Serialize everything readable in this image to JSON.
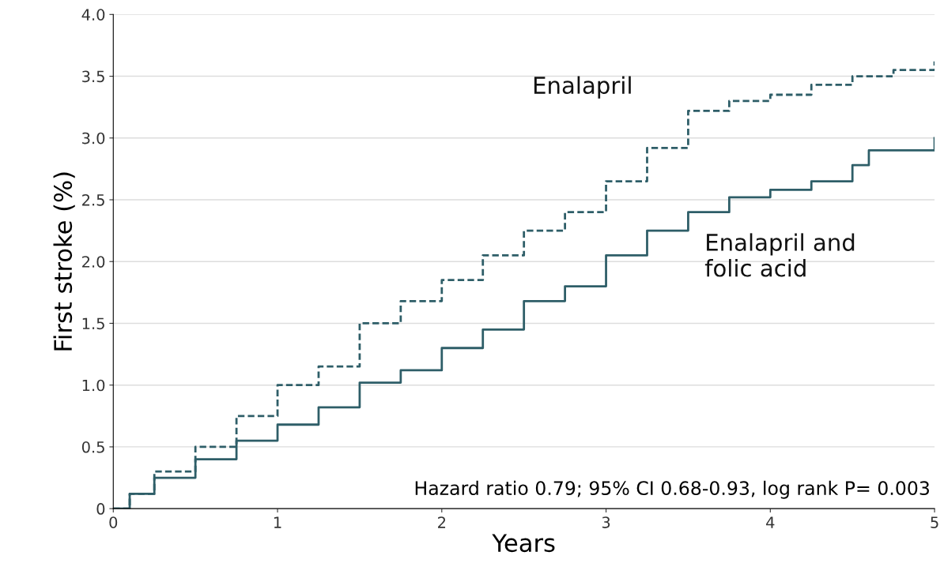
{
  "chart_data": {
    "type": "step",
    "xlabel": "Years",
    "ylabel": "First stroke (%)",
    "xlim": [
      0,
      5
    ],
    "ylim": [
      0,
      4.0
    ],
    "xticks": [
      0,
      1,
      2,
      3,
      4,
      5
    ],
    "yticks": [
      {
        "value": 0,
        "label": "0"
      },
      {
        "value": 0.5,
        "label": "0.5"
      },
      {
        "value": 1.0,
        "label": "1.0"
      },
      {
        "value": 1.5,
        "label": "1.5"
      },
      {
        "value": 2.0,
        "label": "2.0"
      },
      {
        "value": 2.5,
        "label": "2.5"
      },
      {
        "value": 3.0,
        "label": "3.0"
      },
      {
        "value": 3.5,
        "label": "3.5"
      },
      {
        "value": 4.0,
        "label": "4.0"
      }
    ],
    "grid": "y",
    "legend": false,
    "series": [
      {
        "name": "Enalapril",
        "color": "#2e5e68",
        "line_style": "dashed",
        "x": [
          0,
          0.1,
          0.25,
          0.5,
          0.75,
          1.0,
          1.25,
          1.5,
          1.75,
          2.0,
          2.25,
          2.5,
          2.75,
          3.0,
          3.25,
          3.5,
          3.75,
          4.0,
          4.25,
          4.5,
          4.75,
          5.0,
          5.0
        ],
        "values": [
          0,
          0.12,
          0.3,
          0.5,
          0.75,
          1.0,
          1.15,
          1.5,
          1.68,
          1.85,
          2.05,
          2.25,
          2.4,
          2.65,
          2.92,
          3.22,
          3.3,
          3.35,
          3.43,
          3.5,
          3.55,
          3.55,
          3.62
        ]
      },
      {
        "name": "Enalapril and\nfolic acid",
        "color": "#2e5e68",
        "line_style": "solid",
        "x": [
          0,
          0.1,
          0.25,
          0.5,
          0.75,
          1.0,
          1.25,
          1.5,
          1.75,
          2.0,
          2.25,
          2.5,
          2.75,
          3.0,
          3.25,
          3.5,
          3.75,
          4.0,
          4.25,
          4.5,
          4.6,
          5.0,
          5.0
        ],
        "values": [
          0,
          0.12,
          0.25,
          0.4,
          0.55,
          0.68,
          0.82,
          1.02,
          1.12,
          1.3,
          1.45,
          1.68,
          1.8,
          2.05,
          2.25,
          2.4,
          2.52,
          2.58,
          2.65,
          2.78,
          2.9,
          2.9,
          3.0
        ]
      }
    ],
    "annotations": [
      "Hazard ratio 0.79; 95% CI 0.68-0.93, log rank P= 0.003"
    ]
  }
}
